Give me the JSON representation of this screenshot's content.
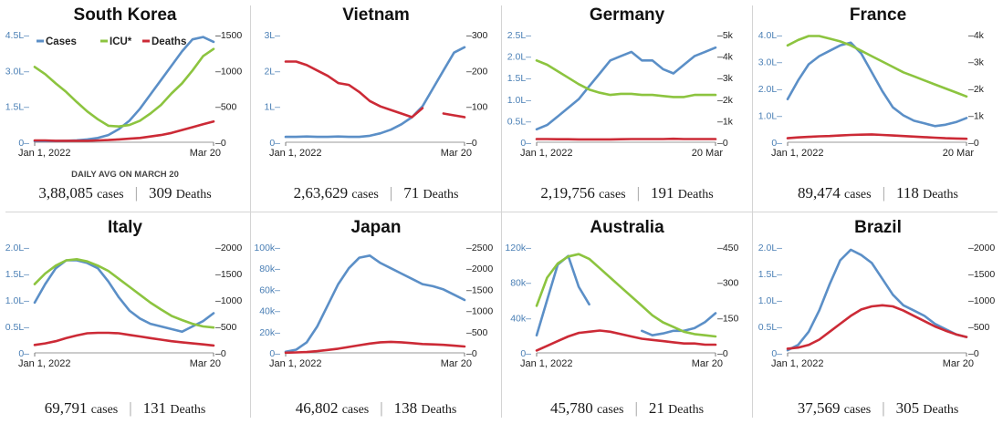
{
  "colors": {
    "cases": "#5b8fc7",
    "icu": "#8cc43f",
    "deaths": "#cc2a36",
    "left_axis": "#4a7fb5"
  },
  "legend": {
    "cases": "Cases",
    "icu": "ICU*",
    "deaths": "Deaths"
  },
  "note": "DAILY AVG ON MARCH 20",
  "chart_data": [
    {
      "type": "line",
      "title": "South Korea",
      "x_start": "Jan 1, 2022",
      "x_end": "Mar 20",
      "left_ticks": [
        "4.5L",
        "3.0L",
        "1.5L",
        "0"
      ],
      "left_lim": [
        0,
        4.5
      ],
      "right_ticks": [
        "1500",
        "1000",
        "500",
        "0"
      ],
      "right_lim": [
        0,
        1500
      ],
      "series": [
        {
          "name": "Cases",
          "axis": "left",
          "values": [
            0.05,
            0.05,
            0.05,
            0.06,
            0.08,
            0.12,
            0.18,
            0.3,
            0.55,
            0.9,
            1.4,
            2.0,
            2.6,
            3.2,
            3.8,
            4.3,
            4.4,
            4.2
          ]
        },
        {
          "name": "ICU*",
          "axis": "right",
          "values": [
            1050,
            950,
            820,
            700,
            560,
            430,
            320,
            230,
            220,
            240,
            300,
            400,
            520,
            680,
            820,
            1000,
            1200,
            1300
          ]
        },
        {
          "name": "Deaths",
          "axis": "right",
          "values": [
            25,
            25,
            20,
            20,
            20,
            20,
            25,
            30,
            40,
            50,
            60,
            80,
            100,
            130,
            170,
            210,
            250,
            290
          ]
        }
      ],
      "stats": {
        "cases_value": "3,88,085",
        "cases_unit": "cases",
        "deaths_value": "309",
        "deaths_unit": "Deaths"
      }
    },
    {
      "type": "line",
      "title": "Vietnam",
      "x_start": "Jan 1, 2022",
      "x_end": "Mar 20",
      "left_ticks": [
        "3L",
        "2L",
        "1L",
        "0"
      ],
      "left_lim": [
        0,
        3
      ],
      "right_ticks": [
        "300",
        "200",
        "100",
        "0"
      ],
      "right_lim": [
        0,
        300
      ],
      "series": [
        {
          "name": "Cases",
          "axis": "left",
          "values": [
            0.15,
            0.15,
            0.16,
            0.15,
            0.15,
            0.16,
            0.15,
            0.15,
            0.18,
            0.25,
            0.35,
            0.5,
            0.7,
            1.0,
            1.5,
            2.0,
            2.5,
            2.65
          ]
        },
        {
          "name": "Deaths",
          "axis": "right",
          "values": [
            225,
            225,
            215,
            200,
            185,
            165,
            160,
            140,
            115,
            100,
            90,
            80,
            70,
            95,
            null,
            80,
            75,
            70
          ]
        }
      ],
      "stats": {
        "cases_value": "2,63,629",
        "cases_unit": "cases",
        "deaths_value": "71",
        "deaths_unit": "Deaths"
      }
    },
    {
      "type": "line",
      "title": "Germany",
      "x_start": "Jan 1, 2022",
      "x_end": "20 Mar",
      "left_ticks": [
        "2.5L",
        "2.0L",
        "1.5L",
        "1.0L",
        "0.5L",
        "0"
      ],
      "left_lim": [
        0,
        2.5
      ],
      "right_ticks": [
        "5k",
        "4k",
        "3k",
        "2k",
        "1k",
        "0"
      ],
      "right_lim": [
        0,
        5000
      ],
      "series": [
        {
          "name": "Cases",
          "axis": "left",
          "values": [
            0.3,
            0.4,
            0.6,
            0.8,
            1.0,
            1.3,
            1.6,
            1.9,
            2.0,
            2.1,
            1.9,
            1.9,
            1.7,
            1.6,
            1.8,
            2.0,
            2.1,
            2.2
          ]
        },
        {
          "name": "ICU*",
          "axis": "right",
          "values": [
            3800,
            3600,
            3300,
            3000,
            2700,
            2450,
            2300,
            2200,
            2250,
            2250,
            2200,
            2200,
            2150,
            2100,
            2100,
            2200,
            2200,
            2200
          ]
        },
        {
          "name": "Deaths",
          "axis": "right",
          "values": [
            150,
            150,
            140,
            140,
            130,
            130,
            130,
            130,
            140,
            150,
            150,
            150,
            150,
            160,
            150,
            150,
            150,
            150
          ]
        }
      ],
      "stats": {
        "cases_value": "2,19,756",
        "cases_unit": "cases",
        "deaths_value": "191",
        "deaths_unit": "Deaths"
      }
    },
    {
      "type": "line",
      "title": "France",
      "x_start": "Jan 1, 2022",
      "x_end": "20 Mar",
      "left_ticks": [
        "4.0L",
        "3.0L",
        "2.0L",
        "1.0L",
        "0"
      ],
      "left_lim": [
        0,
        4.0
      ],
      "right_ticks": [
        "4k",
        "3k",
        "2k",
        "1k",
        "0"
      ],
      "right_lim": [
        0,
        4000
      ],
      "series": [
        {
          "name": "Cases",
          "axis": "left",
          "values": [
            1.6,
            2.3,
            2.9,
            3.2,
            3.4,
            3.6,
            3.7,
            3.3,
            2.6,
            1.9,
            1.3,
            1.0,
            0.8,
            0.7,
            0.6,
            0.65,
            0.75,
            0.9
          ]
        },
        {
          "name": "ICU*",
          "axis": "right",
          "values": [
            3600,
            3800,
            3950,
            3950,
            3850,
            3750,
            3600,
            3400,
            3200,
            3000,
            2800,
            2600,
            2450,
            2300,
            2150,
            2000,
            1850,
            1700
          ]
        },
        {
          "name": "Deaths",
          "axis": "right",
          "values": [
            150,
            180,
            200,
            220,
            230,
            250,
            270,
            280,
            290,
            270,
            250,
            230,
            210,
            190,
            170,
            150,
            140,
            130
          ]
        }
      ],
      "stats": {
        "cases_value": "89,474",
        "cases_unit": "cases",
        "deaths_value": "118",
        "deaths_unit": "Deaths"
      }
    },
    {
      "type": "line",
      "title": "Italy",
      "x_start": "Jan 1, 2022",
      "x_end": "Mar 20",
      "left_ticks": [
        "2.0L",
        "1.5L",
        "1.0L",
        "0.5L",
        "0"
      ],
      "left_lim": [
        0,
        2.0
      ],
      "right_ticks": [
        "2000",
        "1500",
        "1000",
        "500",
        "0"
      ],
      "right_lim": [
        0,
        2000
      ],
      "series": [
        {
          "name": "Cases",
          "axis": "left",
          "values": [
            0.95,
            1.3,
            1.6,
            1.75,
            1.75,
            1.7,
            1.6,
            1.35,
            1.05,
            0.8,
            0.65,
            0.55,
            0.5,
            0.45,
            0.4,
            0.5,
            0.6,
            0.75
          ]
        },
        {
          "name": "ICU*",
          "axis": "right",
          "values": [
            1300,
            1500,
            1650,
            1750,
            1770,
            1730,
            1650,
            1550,
            1400,
            1250,
            1100,
            950,
            820,
            700,
            620,
            550,
            500,
            480
          ]
        },
        {
          "name": "Deaths",
          "axis": "right",
          "values": [
            150,
            180,
            220,
            280,
            330,
            370,
            380,
            380,
            370,
            340,
            310,
            280,
            250,
            220,
            200,
            180,
            160,
            140
          ]
        }
      ],
      "stats": {
        "cases_value": "69,791",
        "cases_unit": "cases",
        "deaths_value": "131",
        "deaths_unit": "Deaths"
      }
    },
    {
      "type": "line",
      "title": "Japan",
      "x_start": "Jan 1, 2022",
      "x_end": "Mar 20",
      "left_ticks": [
        "100k",
        "80k",
        "60k",
        "40k",
        "20k",
        "0"
      ],
      "left_lim": [
        0,
        100
      ],
      "right_ticks": [
        "2500",
        "2000",
        "1500",
        "1000",
        "500",
        "0"
      ],
      "right_lim": [
        0,
        2500
      ],
      "series": [
        {
          "name": "Cases",
          "axis": "left",
          "values": [
            1,
            3,
            10,
            25,
            45,
            65,
            80,
            90,
            92,
            85,
            80,
            75,
            70,
            65,
            63,
            60,
            55,
            50
          ]
        },
        {
          "name": "Deaths",
          "axis": "right",
          "values": [
            5,
            10,
            20,
            40,
            70,
            100,
            140,
            180,
            220,
            250,
            260,
            250,
            230,
            210,
            200,
            190,
            170,
            150
          ]
        }
      ],
      "stats": {
        "cases_value": "46,802",
        "cases_unit": "cases",
        "deaths_value": "138",
        "deaths_unit": "Deaths"
      }
    },
    {
      "type": "line",
      "title": "Australia",
      "x_start": "Jan 1, 2022",
      "x_end": "Mar 20",
      "left_ticks": [
        "120k",
        "80k",
        "40k",
        "0"
      ],
      "left_lim": [
        0,
        120
      ],
      "right_ticks": [
        "450",
        "300",
        "150",
        "0"
      ],
      "right_lim": [
        0,
        450
      ],
      "series": [
        {
          "name": "Cases",
          "axis": "left",
          "values": [
            20,
            60,
            100,
            110,
            75,
            55,
            null,
            null,
            null,
            null,
            25,
            20,
            22,
            25,
            25,
            28,
            35,
            45
          ]
        },
        {
          "name": "ICU*",
          "axis": "right",
          "values": [
            200,
            320,
            380,
            410,
            420,
            400,
            360,
            320,
            280,
            240,
            200,
            160,
            130,
            110,
            90,
            80,
            75,
            70
          ]
        },
        {
          "name": "Deaths",
          "axis": "right",
          "values": [
            10,
            30,
            50,
            70,
            85,
            90,
            95,
            90,
            80,
            70,
            60,
            55,
            50,
            45,
            40,
            40,
            35,
            35
          ]
        }
      ],
      "stats": {
        "cases_value": "45,780",
        "cases_unit": "cases",
        "deaths_value": "21",
        "deaths_unit": "Deaths"
      }
    },
    {
      "type": "line",
      "title": "Brazil",
      "x_start": "Jan 1, 2022",
      "x_end": "Mar 20",
      "left_ticks": [
        "2.0L",
        "1.5L",
        "1.0L",
        "0.5L",
        "0"
      ],
      "left_lim": [
        0,
        2.0
      ],
      "right_ticks": [
        "2000",
        "1500",
        "1000",
        "500",
        "0"
      ],
      "right_lim": [
        0,
        2000
      ],
      "series": [
        {
          "name": "Cases",
          "axis": "left",
          "values": [
            0.05,
            0.15,
            0.4,
            0.8,
            1.3,
            1.75,
            1.95,
            1.85,
            1.7,
            1.4,
            1.1,
            0.9,
            0.8,
            0.7,
            0.55,
            0.45,
            0.35,
            0.3
          ]
        },
        {
          "name": "Deaths",
          "axis": "right",
          "values": [
            80,
            100,
            150,
            250,
            400,
            550,
            700,
            820,
            880,
            900,
            880,
            800,
            700,
            600,
            500,
            420,
            350,
            300
          ]
        }
      ],
      "stats": {
        "cases_value": "37,569",
        "cases_unit": "cases",
        "deaths_value": "305",
        "deaths_unit": "Deaths"
      }
    }
  ]
}
